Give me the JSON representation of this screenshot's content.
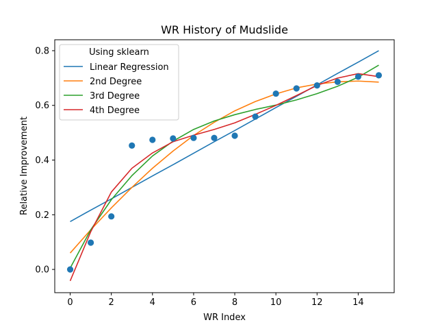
{
  "chart_data": {
    "type": "line",
    "title": "WR History of Mudslide",
    "xlabel": "WR Index",
    "ylabel": "Relative Improvement",
    "xlim": [
      -0.75,
      15.75
    ],
    "ylim": [
      -0.085,
      0.84
    ],
    "xticks": [
      0,
      2,
      4,
      6,
      8,
      10,
      12,
      14
    ],
    "yticks": [
      0.0,
      0.2,
      0.4,
      0.6,
      0.8
    ],
    "xtick_labels": [
      "0",
      "2",
      "4",
      "6",
      "8",
      "10",
      "12",
      "14"
    ],
    "ytick_labels": [
      "0.0",
      "0.2",
      "0.4",
      "0.6",
      "0.8"
    ],
    "grid": false,
    "legend": {
      "title": "Using sklearn",
      "placement": "top-left",
      "entries": [
        "Linear Regression",
        "2nd Degree",
        "3rd Degree",
        "4th Degree"
      ]
    },
    "scatter": {
      "color": "#1f77b4",
      "x": [
        0,
        1,
        2,
        3,
        4,
        5,
        6,
        7,
        8,
        9,
        10,
        11,
        12,
        13,
        14,
        15
      ],
      "y": [
        0.0,
        0.098,
        0.194,
        0.453,
        0.474,
        0.479,
        0.481,
        0.481,
        0.489,
        0.559,
        0.643,
        0.662,
        0.673,
        0.686,
        0.705,
        0.71
      ]
    },
    "x": [
      0,
      1,
      2,
      3,
      4,
      5,
      6,
      7,
      8,
      9,
      10,
      11,
      12,
      13,
      14,
      15
    ],
    "series": [
      {
        "name": "Linear Regression",
        "color": "#1f77b4",
        "values": [
          0.175,
          0.217,
          0.258,
          0.3,
          0.342,
          0.383,
          0.425,
          0.467,
          0.508,
          0.55,
          0.592,
          0.633,
          0.675,
          0.717,
          0.758,
          0.8
        ]
      },
      {
        "name": "2nd Degree",
        "color": "#ff7f0e",
        "values": [
          0.06,
          0.145,
          0.225,
          0.3,
          0.37,
          0.433,
          0.49,
          0.538,
          0.58,
          0.614,
          0.642,
          0.664,
          0.678,
          0.686,
          0.689,
          0.685
        ]
      },
      {
        "name": "3rd Degree",
        "color": "#2ca02c",
        "values": [
          0.005,
          0.145,
          0.255,
          0.343,
          0.415,
          0.469,
          0.512,
          0.543,
          0.566,
          0.585,
          0.601,
          0.62,
          0.643,
          0.67,
          0.703,
          0.747
        ]
      },
      {
        "name": "4th Degree",
        "color": "#d62728",
        "values": [
          -0.042,
          0.138,
          0.283,
          0.37,
          0.426,
          0.467,
          0.491,
          0.512,
          0.536,
          0.567,
          0.6,
          0.636,
          0.673,
          0.7,
          0.716,
          0.705
        ]
      }
    ]
  }
}
